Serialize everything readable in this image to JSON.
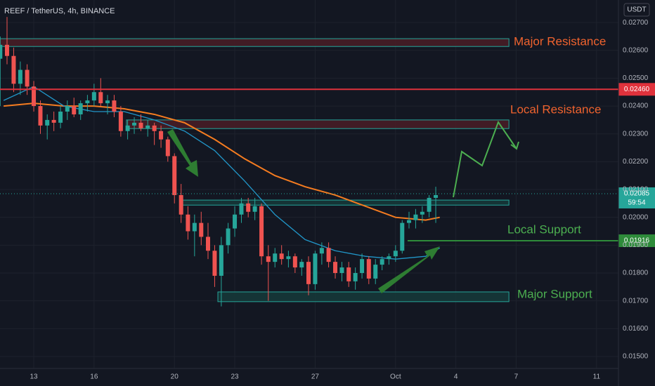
{
  "chart_data": {
    "type": "candlestick",
    "title": "REEF / TetherUS, 4h, BINANCE",
    "currency": "USDT",
    "xlim": [
      11.32,
      42.09
    ],
    "ylim": [
      0.01457,
      0.02781
    ],
    "xticks": [
      {
        "value": 13,
        "label": "13"
      },
      16,
      20,
      23,
      27,
      {
        "value": 31,
        "label": "Oct"
      },
      {
        "value": 34,
        "label": "4"
      },
      {
        "value": 37,
        "label": "7"
      },
      {
        "value": 41,
        "label": "11"
      }
    ],
    "yticks": [
      {
        "value": 0.015,
        "label": "0.01500"
      },
      {
        "value": 0.016,
        "label": "0.01600"
      },
      {
        "value": 0.017,
        "label": "0.01700"
      },
      {
        "value": 0.018,
        "label": "0.01800"
      },
      {
        "value": 0.019,
        "label": "0.01900"
      },
      {
        "value": 0.02,
        "label": "0.02000"
      },
      {
        "value": 0.021,
        "label": "0.02100"
      },
      {
        "value": 0.022,
        "label": "0.02200"
      },
      {
        "value": 0.023,
        "label": "0.02300"
      },
      {
        "value": 0.024,
        "label": "0.02400"
      },
      {
        "value": 0.025,
        "label": "0.02500"
      },
      {
        "value": 0.026,
        "label": "0.02600"
      },
      {
        "value": 0.027,
        "label": "0.02700"
      }
    ],
    "grid": true,
    "up_color": "#26a69a",
    "down_color": "#ef5350",
    "x": [
      11.33,
      11.67,
      12,
      12.33,
      12.67,
      13,
      13.33,
      13.67,
      14,
      14.33,
      14.67,
      15,
      15.33,
      15.67,
      16,
      16.33,
      16.67,
      17,
      17.33,
      17.67,
      18,
      18.33,
      18.67,
      19,
      19.33,
      19.67,
      20,
      20.33,
      20.67,
      21,
      21.33,
      21.67,
      22,
      22.33,
      22.67,
      23,
      23.33,
      23.67,
      24,
      24.33,
      24.67,
      25,
      25.33,
      25.67,
      26,
      26.33,
      26.67,
      27,
      27.33,
      27.67,
      28,
      28.33,
      28.67,
      29,
      29.33,
      29.67,
      30,
      30.33,
      30.67,
      31,
      31.33,
      31.67,
      32,
      32.33,
      32.67,
      33
    ],
    "open": [
      0.0257,
      0.0262,
      0.0258,
      0.0248,
      0.0253,
      0.0247,
      0.024,
      0.0233,
      0.0235,
      0.0234,
      0.0238,
      0.024,
      0.0237,
      0.0241,
      0.0242,
      0.0245,
      0.0241,
      0.0242,
      0.0238,
      0.0231,
      0.0233,
      0.0234,
      0.0232,
      0.0233,
      0.0231,
      0.0228,
      0.0222,
      0.0208,
      0.0201,
      0.0195,
      0.0198,
      0.0193,
      0.0188,
      0.0179,
      0.019,
      0.0196,
      0.0201,
      0.0205,
      0.0202,
      0.0204,
      0.0186,
      0.0184,
      0.0187,
      0.0185,
      0.0186,
      0.0182,
      0.0184,
      0.0176,
      0.0187,
      0.0189,
      0.0184,
      0.018,
      0.0182,
      0.0177,
      0.018,
      0.0185,
      0.0178,
      0.0183,
      0.0185,
      0.0186,
      0.0188,
      0.0198,
      0.0199,
      0.0201,
      0.0202,
      0.0207
    ],
    "high": [
      0.0265,
      0.0272,
      0.0261,
      0.0256,
      0.0255,
      0.0249,
      0.0242,
      0.0237,
      0.0238,
      0.024,
      0.0242,
      0.0243,
      0.0242,
      0.0244,
      0.0248,
      0.025,
      0.0244,
      0.0244,
      0.024,
      0.0235,
      0.0236,
      0.0237,
      0.0235,
      0.0234,
      0.0233,
      0.0229,
      0.0223,
      0.0212,
      0.0204,
      0.0201,
      0.0202,
      0.0198,
      0.019,
      0.0193,
      0.0198,
      0.0204,
      0.0207,
      0.0207,
      0.0207,
      0.0205,
      0.019,
      0.0189,
      0.019,
      0.0188,
      0.0187,
      0.0185,
      0.0186,
      0.0188,
      0.0191,
      0.0191,
      0.0186,
      0.0184,
      0.0184,
      0.0182,
      0.0187,
      0.0186,
      0.0185,
      0.0186,
      0.0187,
      0.019,
      0.0199,
      0.0202,
      0.0203,
      0.0204,
      0.0208,
      0.0211
    ],
    "low": [
      0.024,
      0.0255,
      0.0245,
      0.0244,
      0.0244,
      0.0238,
      0.023,
      0.0228,
      0.0231,
      0.0232,
      0.0235,
      0.0236,
      0.0235,
      0.0238,
      0.024,
      0.024,
      0.0237,
      0.0236,
      0.0229,
      0.0228,
      0.023,
      0.0231,
      0.0229,
      0.0226,
      0.0225,
      0.022,
      0.0205,
      0.0198,
      0.0192,
      0.0186,
      0.019,
      0.0185,
      0.0175,
      0.0168,
      0.0187,
      0.0193,
      0.0198,
      0.02,
      0.0199,
      0.0183,
      0.017,
      0.0182,
      0.0183,
      0.0182,
      0.018,
      0.0179,
      0.0172,
      0.0174,
      0.0183,
      0.0182,
      0.0178,
      0.0177,
      0.0175,
      0.0174,
      0.0178,
      0.0176,
      0.0176,
      0.0181,
      0.0183,
      0.0184,
      0.0187,
      0.0196,
      0.0196,
      0.0198,
      0.02,
      0.0198
    ],
    "close": [
      0.0262,
      0.0258,
      0.0248,
      0.0253,
      0.0247,
      0.024,
      0.0233,
      0.0235,
      0.0234,
      0.0238,
      0.024,
      0.0237,
      0.0241,
      0.0242,
      0.0245,
      0.0241,
      0.0242,
      0.0238,
      0.0231,
      0.0233,
      0.0234,
      0.0232,
      0.0233,
      0.0231,
      0.0228,
      0.0222,
      0.0208,
      0.0201,
      0.0195,
      0.0198,
      0.0193,
      0.0188,
      0.0179,
      0.019,
      0.0196,
      0.0201,
      0.0205,
      0.0202,
      0.0204,
      0.0186,
      0.0184,
      0.0187,
      0.0185,
      0.0186,
      0.0182,
      0.0184,
      0.0176,
      0.0187,
      0.0189,
      0.0184,
      0.018,
      0.0182,
      0.0177,
      0.018,
      0.0185,
      0.0178,
      0.0183,
      0.0185,
      0.0186,
      0.0188,
      0.0198,
      0.0199,
      0.0201,
      0.0202,
      0.0207,
      0.0208
    ],
    "lines": [
      {
        "color": "#f57c20",
        "x": [
          11.5,
          13,
          14.5,
          16,
          17.5,
          19,
          20.5,
          22,
          23.5,
          25,
          26.5,
          28,
          29.5,
          31,
          32.5,
          33.2
        ],
        "values": [
          0.024,
          0.0241,
          0.024,
          0.024,
          0.0239,
          0.0237,
          0.0234,
          0.0228,
          0.0221,
          0.0215,
          0.0211,
          0.0208,
          0.0204,
          0.02,
          0.0199,
          0.02
        ]
      },
      {
        "color": "#2196c8",
        "x": [
          11.5,
          13,
          14.5,
          16,
          17.5,
          19,
          20.5,
          22,
          23.5,
          25,
          26.5,
          28,
          29.5,
          31,
          32.5,
          33.2
        ],
        "values": [
          0.0242,
          0.0247,
          0.024,
          0.0238,
          0.0238,
          0.0235,
          0.0231,
          0.0224,
          0.0213,
          0.0201,
          0.0192,
          0.0188,
          0.0186,
          0.0185,
          0.0186,
          0.0189
        ]
      }
    ],
    "zones": [
      {
        "label": "Major Resistance",
        "low": 0.02614,
        "high": 0.02642,
        "x": [
          11.32,
          36.64
        ],
        "fill": "#4a1d26",
        "stroke": "#26a69a",
        "text_color": "#f0632e"
      },
      {
        "label": "Local Resistance",
        "low": 0.02319,
        "high": 0.0235,
        "x": [
          17.61,
          36.64
        ],
        "fill": "#4a1d26",
        "stroke": "#26a69a",
        "text_color": "#f0632e"
      },
      {
        "low": 0.02044,
        "high": 0.02062,
        "x": [
          20.34,
          36.64
        ],
        "fill": "#163a3a",
        "stroke": "#26a69a"
      },
      {
        "label": "Major Support",
        "low": 0.01697,
        "high": 0.01732,
        "x": [
          22.16,
          36.64
        ],
        "fill": "#163a3a",
        "stroke": "#26a69a",
        "text_color": "#4caf50"
      }
    ],
    "levels": [
      {
        "value": 0.0246,
        "label": "0.02460",
        "color": "#e0323c",
        "x_start": 11.32
      },
      {
        "value": 0.01916,
        "label": "0.01916",
        "color": "#2e8b3a",
        "x_start": 31.6,
        "annotation": "Local Support",
        "text_color": "#4caf50"
      }
    ],
    "last_price": {
      "value": 0.02085,
      "label": "0.02085",
      "countdown": "59:54",
      "color": "#26a69a"
    }
  }
}
